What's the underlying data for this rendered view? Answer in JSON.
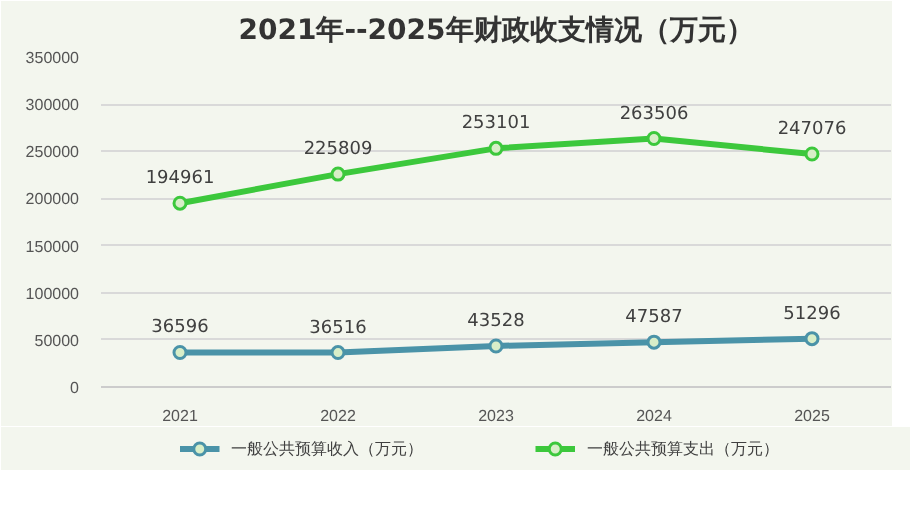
{
  "chart_data": {
    "type": "line",
    "title": "2021年--2025年财政收支情况（万元）",
    "categories": [
      "2021",
      "2022",
      "2023",
      "2024",
      "2025"
    ],
    "series": [
      {
        "name": "一般公共预算收入（万元）",
        "color": "#4a93a8",
        "values": [
          36596,
          36516,
          43528,
          47587,
          51296
        ]
      },
      {
        "name": "一般公共预算支出（万元）",
        "color": "#3cc83c",
        "values": [
          194961,
          225809,
          253101,
          263506,
          247076
        ]
      }
    ],
    "ylim": [
      0,
      350000
    ],
    "yticks": [
      0,
      50000,
      100000,
      150000,
      200000,
      250000,
      300000,
      350000
    ],
    "grid": "y",
    "legend": "bottom",
    "marker": "circle",
    "line_style": "solid",
    "data_labels": true
  }
}
